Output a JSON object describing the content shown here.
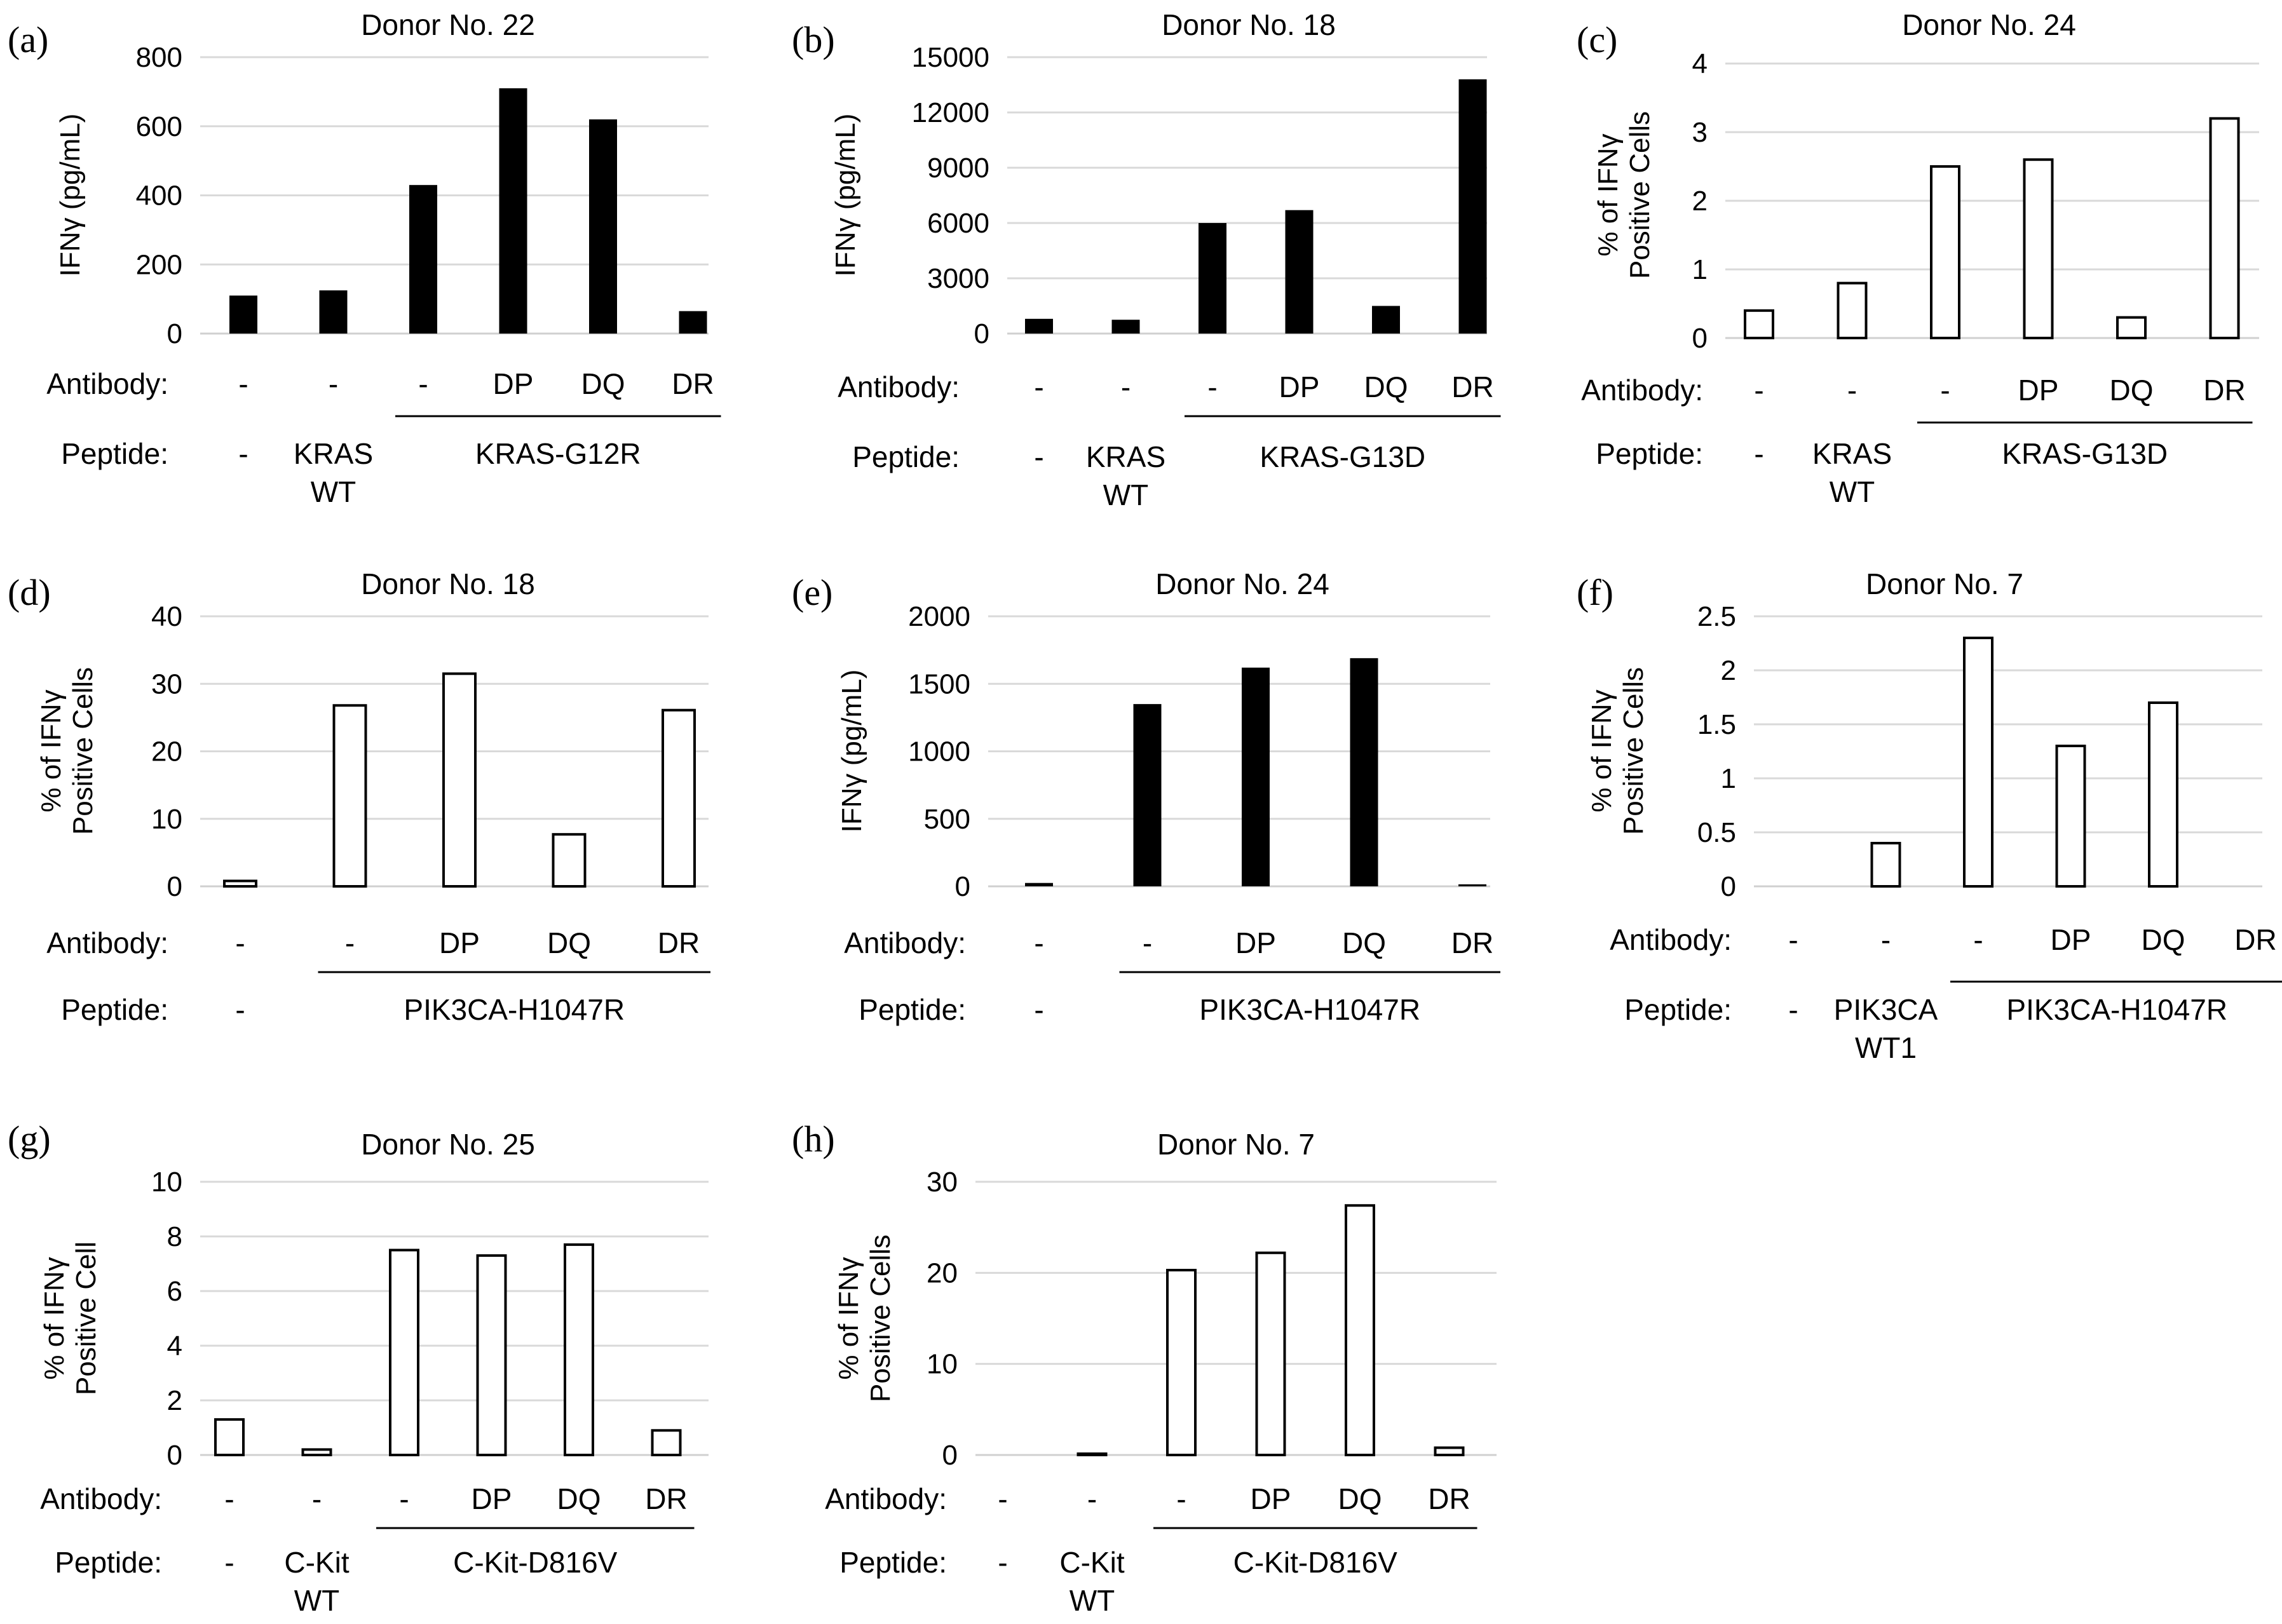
{
  "figure": {
    "bar_color_filled": "#000000",
    "bar_color_open": "#ffffff",
    "gridline_color": "#d9d9d9"
  },
  "chart_data": [
    {
      "type": "bar",
      "panel": "(a)",
      "title": "Donor No. 22",
      "ylabel": [
        "IFNγ (pg/mL)"
      ],
      "ylim": [
        0,
        800
      ],
      "yticks": [
        0,
        200,
        400,
        600,
        800
      ],
      "bar_fill": "filled",
      "values": [
        110,
        125,
        430,
        710,
        620,
        65
      ],
      "antibody_label": "Antibody:",
      "antibody": [
        "-",
        "-",
        "-",
        "DP",
        "DQ",
        "DR"
      ],
      "peptide_label": "Peptide:",
      "peptide": [
        {
          "start": 0,
          "end": 0,
          "lines": [
            "-"
          ]
        },
        {
          "start": 1,
          "end": 1,
          "lines": [
            "KRAS",
            "WT"
          ]
        },
        {
          "start": 2,
          "end": 5,
          "lines": [
            "KRAS-G12R"
          ],
          "bracket": true
        }
      ]
    },
    {
      "type": "bar",
      "panel": "(b)",
      "title": "Donor No. 18",
      "ylabel": [
        "IFNγ (pg/mL)"
      ],
      "ylim": [
        0,
        15000
      ],
      "yticks": [
        0,
        3000,
        6000,
        9000,
        12000,
        15000
      ],
      "bar_fill": "filled",
      "values": [
        800,
        750,
        6000,
        6700,
        1500,
        13800
      ],
      "antibody_label": "Antibody:",
      "antibody": [
        "-",
        "-",
        "-",
        "DP",
        "DQ",
        "DR"
      ],
      "peptide_label": "Peptide:",
      "peptide": [
        {
          "start": 0,
          "end": 0,
          "lines": [
            "-"
          ]
        },
        {
          "start": 1,
          "end": 1,
          "lines": [
            "KRAS",
            "WT"
          ]
        },
        {
          "start": 2,
          "end": 5,
          "lines": [
            "KRAS-G13D"
          ],
          "bracket": true
        }
      ]
    },
    {
      "type": "bar",
      "panel": "(c)",
      "title": "Donor No. 24",
      "ylabel": [
        "% of IFNγ",
        "Positive Cells"
      ],
      "ylim": [
        0,
        4
      ],
      "yticks": [
        0,
        1,
        2,
        3,
        4
      ],
      "bar_fill": "open",
      "values": [
        0.4,
        0.8,
        2.5,
        2.6,
        0.3,
        3.2
      ],
      "antibody_label": "Antibody:",
      "antibody": [
        "-",
        "-",
        "-",
        "DP",
        "DQ",
        "DR"
      ],
      "peptide_label": "Peptide:",
      "peptide": [
        {
          "start": 0,
          "end": 0,
          "lines": [
            "-"
          ]
        },
        {
          "start": 1,
          "end": 1,
          "lines": [
            "KRAS",
            "WT"
          ]
        },
        {
          "start": 2,
          "end": 5,
          "lines": [
            "KRAS-G13D"
          ],
          "bracket": true
        }
      ]
    },
    {
      "type": "bar",
      "panel": "(d)",
      "title": "Donor No. 18",
      "ylabel": [
        "% of IFNγ",
        "Positive Cells"
      ],
      "ylim": [
        0,
        40
      ],
      "yticks": [
        0,
        10,
        20,
        30,
        40
      ],
      "bar_fill": "open",
      "values": [
        0.8,
        26.8,
        31.5,
        7.7,
        26.1
      ],
      "antibody_label": "Antibody:",
      "antibody": [
        "-",
        "-",
        "DP",
        "DQ",
        "DR"
      ],
      "peptide_label": "Peptide:",
      "peptide": [
        {
          "start": 0,
          "end": 0,
          "lines": [
            "-"
          ]
        },
        {
          "start": 1,
          "end": 4,
          "lines": [
            "PIK3CA-H1047R"
          ],
          "bracket": true
        }
      ]
    },
    {
      "type": "bar",
      "panel": "(e)",
      "title": "Donor No. 24",
      "ylabel": [
        "IFNγ (pg/mL)"
      ],
      "ylim": [
        0,
        2000
      ],
      "yticks": [
        0,
        500,
        1000,
        1500,
        2000
      ],
      "bar_fill": "filled",
      "values": [
        25,
        1350,
        1620,
        1690,
        15
      ],
      "antibody_label": "Antibody:",
      "antibody": [
        "-",
        "-",
        "DP",
        "DQ",
        "DR"
      ],
      "peptide_label": "Peptide:",
      "peptide": [
        {
          "start": 0,
          "end": 0,
          "lines": [
            "-"
          ]
        },
        {
          "start": 1,
          "end": 4,
          "lines": [
            "PIK3CA-H1047R"
          ],
          "bracket": true
        }
      ]
    },
    {
      "type": "bar",
      "panel": "(f)",
      "title": "Donor No. 7",
      "ylabel": [
        "% of IFNγ",
        "Positive Cells"
      ],
      "ylim": [
        0,
        2.5
      ],
      "yticks": [
        0,
        0.5,
        1,
        1.5,
        2,
        2.5
      ],
      "bar_fill": "open",
      "values": [
        0,
        0.4,
        2.3,
        1.3,
        1.7,
        0
      ],
      "antibody_label": "Antibody:",
      "antibody": [
        "-",
        "-",
        "-",
        "DP",
        "DQ",
        "DR"
      ],
      "peptide_label": "Peptide:",
      "peptide": [
        {
          "start": 0,
          "end": 0,
          "lines": [
            "-"
          ]
        },
        {
          "start": 1,
          "end": 1,
          "lines": [
            "PIK3CA",
            "WT1"
          ]
        },
        {
          "start": 2,
          "end": 5,
          "lines": [
            "PIK3CA-H1047R"
          ],
          "bracket": true
        }
      ]
    },
    {
      "type": "bar",
      "panel": "(g)",
      "title": "Donor No. 25",
      "ylabel": [
        "% of IFNγ",
        "Positive Cell"
      ],
      "ylim": [
        0,
        10
      ],
      "yticks": [
        0,
        2,
        4,
        6,
        8,
        10
      ],
      "bar_fill": "open",
      "values": [
        1.3,
        0.2,
        7.5,
        7.3,
        7.7,
        0.9
      ],
      "antibody_label": "Antibody:",
      "antibody": [
        "-",
        "-",
        "-",
        "DP",
        "DQ",
        "DR"
      ],
      "peptide_label": "Peptide:",
      "peptide": [
        {
          "start": 0,
          "end": 0,
          "lines": [
            "-"
          ]
        },
        {
          "start": 1,
          "end": 1,
          "lines": [
            "C-Kit",
            "WT"
          ]
        },
        {
          "start": 2,
          "end": 5,
          "lines": [
            "C-Kit-D816V"
          ],
          "bracket": true
        }
      ]
    },
    {
      "type": "bar",
      "panel": "(h)",
      "title": "Donor No. 7",
      "ylabel": [
        "% of IFNγ",
        "Positive Cells"
      ],
      "ylim": [
        0,
        30
      ],
      "yticks": [
        0,
        10,
        20,
        30
      ],
      "bar_fill": "open",
      "values": [
        0,
        0.1,
        20.3,
        22.2,
        27.4,
        0.8
      ],
      "antibody_label": "Antibody:",
      "antibody": [
        "-",
        "-",
        "-",
        "DP",
        "DQ",
        "DR"
      ],
      "peptide_label": "Peptide:",
      "peptide": [
        {
          "start": 0,
          "end": 0,
          "lines": [
            "-"
          ]
        },
        {
          "start": 1,
          "end": 1,
          "lines": [
            "C-Kit",
            "WT"
          ]
        },
        {
          "start": 2,
          "end": 5,
          "lines": [
            "C-Kit-D816V"
          ],
          "bracket": true
        }
      ]
    }
  ]
}
